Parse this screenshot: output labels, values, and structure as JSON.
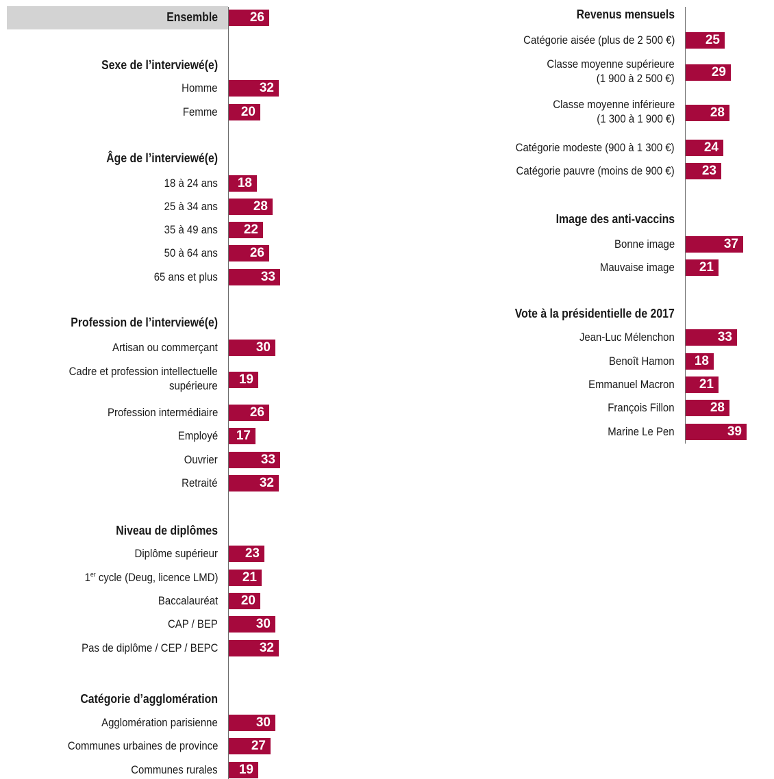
{
  "colors": {
    "bar": "#a6093d",
    "text": "#1a1a1a",
    "value": "#ffffff",
    "highlight": "#d3d3d3",
    "axis": "#6d6d6d"
  },
  "chart_data": {
    "type": "bar",
    "orientation": "horizontal",
    "xlim": [
      0,
      40
    ],
    "grid": false,
    "legend": "none",
    "columns": [
      {
        "groups": [
          {
            "title": "",
            "items": [
              {
                "label": "Ensemble",
                "value": 26,
                "highlight": true
              }
            ]
          },
          {
            "title": "Sexe de l’interviewé(e)",
            "items": [
              {
                "label": "Homme",
                "value": 32
              },
              {
                "label": "Femme",
                "value": 20
              }
            ]
          },
          {
            "title": "Âge de l’interviewé(e)",
            "items": [
              {
                "label": "18 à 24 ans",
                "value": 18
              },
              {
                "label": "25 à 34 ans",
                "value": 28
              },
              {
                "label": "35 à 49 ans",
                "value": 22
              },
              {
                "label": "50 à 64 ans",
                "value": 26
              },
              {
                "label": "65 ans et plus",
                "value": 33
              }
            ]
          },
          {
            "title": "Profession de l’interviewé(e)",
            "items": [
              {
                "label": "Artisan ou commerçant",
                "value": 30
              },
              {
                "label": "Cadre et profession intellectuelle",
                "label2": "supérieure",
                "value": 19
              },
              {
                "label": "Profession intermédiaire",
                "value": 26
              },
              {
                "label": "Employé",
                "value": 17
              },
              {
                "label": "Ouvrier",
                "value": 33
              },
              {
                "label": "Retraité",
                "value": 32
              }
            ]
          },
          {
            "title": "Niveau de diplômes",
            "items": [
              {
                "label": "Diplôme supérieur",
                "value": 23
              },
              {
                "label": "1",
                "sup": "er",
                "label_rest": " cycle (Deug, licence LMD)",
                "value": 21
              },
              {
                "label": "Baccalauréat",
                "value": 20
              },
              {
                "label": "CAP / BEP",
                "value": 30
              },
              {
                "label": "Pas de diplôme / CEP / BEPC",
                "value": 32
              }
            ]
          },
          {
            "title": "Catégorie d’agglomération",
            "items": [
              {
                "label": "Agglomération parisienne",
                "value": 30
              },
              {
                "label": "Communes urbaines de province",
                "value": 27
              },
              {
                "label": "Communes rurales",
                "value": 19
              }
            ]
          }
        ]
      },
      {
        "groups": [
          {
            "title": "Revenus mensuels",
            "items": [
              {
                "label": "Catégorie aisée (plus de 2 500 €)",
                "value": 25
              },
              {
                "label": "Classe moyenne supérieure",
                "label2": "(1 900 à 2 500 €)",
                "value": 29
              },
              {
                "label": "Classe moyenne inférieure",
                "label2": "(1 300 à 1 900 €)",
                "value": 28
              },
              {
                "label": "Catégorie modeste (900 à 1 300 €)",
                "value": 24
              },
              {
                "label": "Catégorie pauvre (moins de 900 €)",
                "value": 23
              }
            ]
          },
          {
            "title": "Image des anti-vaccins",
            "items": [
              {
                "label": "Bonne image",
                "value": 37
              },
              {
                "label": "Mauvaise image",
                "value": 21
              }
            ]
          },
          {
            "title": "Vote à la présidentielle de 2017",
            "items": [
              {
                "label": "Jean-Luc Mélenchon",
                "value": 33
              },
              {
                "label": "Benoît Hamon",
                "value": 18
              },
              {
                "label": "Emmanuel Macron",
                "value": 21
              },
              {
                "label": "François Fillon",
                "value": 28
              },
              {
                "label": "Marine Le Pen",
                "value": 39
              }
            ]
          }
        ]
      }
    ]
  }
}
